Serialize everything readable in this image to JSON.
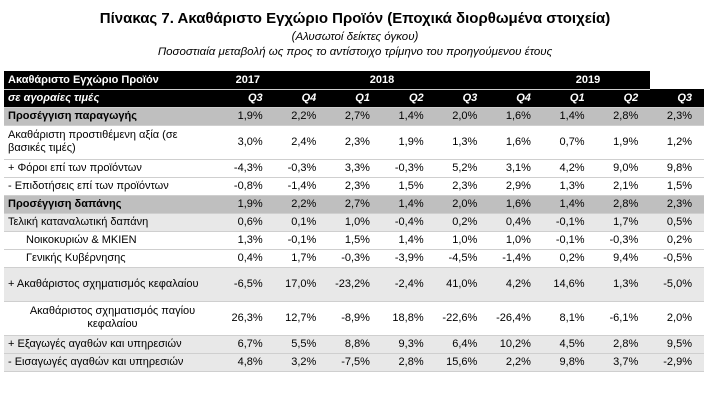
{
  "title": "Πίνακας 7. Ακαθάριστο Εγχώριο Προϊόν (Εποχικά διορθωμένα στοιχεία)",
  "subtitle1": "(Αλυσωτοί δείκτες όγκου)",
  "subtitle2": "Ποσοστιαία μεταβολή ως προς το αντίστοιχο τρίμηνο  του προηγούμενου έτους",
  "header": {
    "label": "Ακαθάριστο Εγχώριο Προϊόν",
    "sublabel": "σε αγοραίες τιμές",
    "years": [
      {
        "label": "2017",
        "span": 1
      },
      {
        "label": "2018",
        "span": 4
      },
      {
        "label": "2019",
        "span": 3
      }
    ],
    "quarters": [
      "Q3",
      "Q4",
      "Q1",
      "Q2",
      "Q3",
      "Q4",
      "Q1",
      "Q2",
      "Q3"
    ]
  },
  "rows": [
    {
      "label": "Προσέγγιση παραγωγής",
      "type": "sec",
      "values": [
        "1,9%",
        "2,2%",
        "2,7%",
        "1,4%",
        "2,0%",
        "1,6%",
        "1,4%",
        "2,8%",
        "2,3%"
      ]
    },
    {
      "label": "Ακαθάριστη προστιθέμενη αξία (σε βασικές τιμές)",
      "type": "tall",
      "values": [
        "3,0%",
        "2,4%",
        "2,3%",
        "1,9%",
        "1,3%",
        "1,6%",
        "0,7%",
        "1,9%",
        "1,2%"
      ]
    },
    {
      "label": "+  Φόροι επί των προϊόντων",
      "type": "row",
      "values": [
        "-4,3%",
        "-0,3%",
        "3,3%",
        "-0,3%",
        "5,2%",
        "3,1%",
        "4,2%",
        "9,0%",
        "9,8%"
      ]
    },
    {
      "label": "-  Επιδοτήσεις επί των προϊόντων",
      "type": "row",
      "values": [
        "-0,8%",
        "-1,4%",
        "2,3%",
        "1,5%",
        "2,3%",
        "2,9%",
        "1,3%",
        "2,1%",
        "1,5%"
      ]
    },
    {
      "label": "Προσέγγιση δαπάνης",
      "type": "sec",
      "values": [
        "1,9%",
        "2,2%",
        "2,7%",
        "1,4%",
        "2,0%",
        "1,6%",
        "1,4%",
        "2,8%",
        "2,3%"
      ]
    },
    {
      "label": "Τελική καταναλωτική δαπάνη",
      "type": "shade",
      "values": [
        "0,6%",
        "0,1%",
        "1,0%",
        "-0,4%",
        "0,2%",
        "0,4%",
        "-0,1%",
        "1,7%",
        "0,5%"
      ]
    },
    {
      "label": "Νοικοκυριών & ΜΚΙΕΝ",
      "type": "ind",
      "values": [
        "1,3%",
        "-0,1%",
        "1,5%",
        "1,4%",
        "1,0%",
        "1,0%",
        "-0,1%",
        "-0,3%",
        "0,2%"
      ]
    },
    {
      "label": "Γενικής Κυβέρνησης",
      "type": "ind",
      "values": [
        "0,4%",
        "1,7%",
        "-0,3%",
        "-3,9%",
        "-4,5%",
        "-1,4%",
        "0,2%",
        "9,4%",
        "-0,5%"
      ]
    },
    {
      "label": "+ Ακαθάριστος σχηματισμός κεφαλαίου",
      "type": "tallshade",
      "values": [
        "-6,5%",
        "17,0%",
        "-23,2%",
        "-2,4%",
        "41,0%",
        "4,2%",
        "14,6%",
        "1,3%",
        "-5,0%"
      ]
    },
    {
      "label": "Ακαθάριστος σχηματισμός παγίου κεφαλαίου",
      "type": "tallind",
      "values": [
        "26,3%",
        "12,7%",
        "-8,9%",
        "18,8%",
        "-22,6%",
        "-26,4%",
        "8,1%",
        "-6,1%",
        "2,0%"
      ]
    },
    {
      "label": "+ Εξαγωγές αγαθών και υπηρεσιών",
      "type": "shade",
      "values": [
        "6,7%",
        "5,5%",
        "8,8%",
        "9,3%",
        "6,4%",
        "10,2%",
        "4,5%",
        "2,8%",
        "9,5%"
      ]
    },
    {
      "label": "-  Εισαγωγές αγαθών και υπηρεσιών",
      "type": "shade",
      "values": [
        "4,8%",
        "3,2%",
        "-7,5%",
        "2,8%",
        "15,6%",
        "2,2%",
        "9,8%",
        "3,7%",
        "-2,9%"
      ]
    }
  ]
}
